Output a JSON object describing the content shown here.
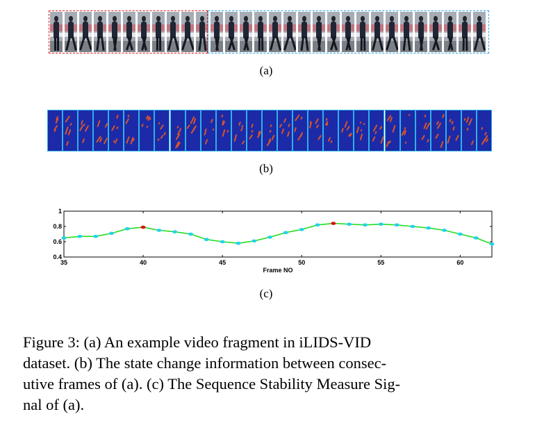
{
  "panels": {
    "a": {
      "label": "(a)",
      "frame_count": 30,
      "boxes": {
        "red": "#e12020",
        "blue": "#29a7e0"
      }
    },
    "b": {
      "label": "(b)",
      "frame_count": 29,
      "colors": {
        "background": "#1c2aa8",
        "border": "#2fb0e8",
        "activity": "#d8552a"
      }
    },
    "c": {
      "label": "(c)"
    }
  },
  "chart_data": {
    "type": "line",
    "title": "",
    "xlabel": "Frame NO",
    "ylabel": "",
    "xlim": [
      35,
      62
    ],
    "ylim": [
      0.4,
      1.0
    ],
    "xticks": [
      35,
      40,
      45,
      50,
      55,
      60
    ],
    "yticks": [
      0.4,
      0.6,
      0.8,
      1
    ],
    "ytick_labels": [
      "0.4",
      "0.6",
      "0.8",
      "1"
    ],
    "grid": false,
    "line_color": "#22dd22",
    "marker_color": "#22d3e8",
    "highlight_color": "#dd1111",
    "highlight_frames": [
      40,
      52
    ],
    "x": [
      35,
      36,
      37,
      38,
      39,
      40,
      41,
      42,
      43,
      44,
      45,
      46,
      47,
      48,
      49,
      50,
      51,
      52,
      53,
      54,
      55,
      56,
      57,
      58,
      59,
      60,
      61,
      62
    ],
    "y": [
      0.65,
      0.67,
      0.67,
      0.71,
      0.77,
      0.79,
      0.75,
      0.73,
      0.7,
      0.63,
      0.6,
      0.58,
      0.61,
      0.66,
      0.72,
      0.76,
      0.82,
      0.84,
      0.83,
      0.82,
      0.83,
      0.82,
      0.8,
      0.78,
      0.75,
      0.7,
      0.65,
      0.57
    ]
  },
  "caption": {
    "lines": [
      "Figure 3: (a) An example video fragment in iLIDS-VID",
      "dataset. (b) The state change information between consec-",
      "utive frames of (a). (c) The Sequence Stability Measure Sig-",
      "nal of (a)."
    ]
  }
}
